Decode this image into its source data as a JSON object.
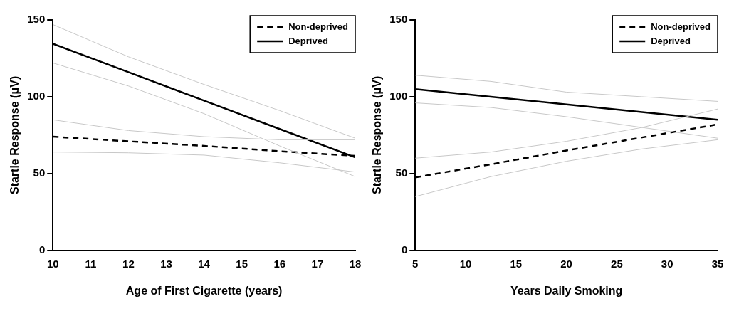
{
  "chart_data": [
    {
      "type": "line",
      "xlabel": "Age of First Cigarette (years)",
      "ylabel": "Startle Response (μV)",
      "x": [
        10,
        12,
        14,
        16,
        18
      ],
      "xlim": [
        10,
        18
      ],
      "xticks": [
        10,
        11,
        12,
        13,
        14,
        15,
        16,
        17,
        18
      ],
      "ylim": [
        0,
        150
      ],
      "yticks": [
        0,
        50,
        100,
        150
      ],
      "legend": "top right",
      "series": [
        {
          "color": "#c8c8c8",
          "values": [
            64,
            63.5,
            62,
            57,
            51
          ]
        },
        {
          "color": "#c8c8c8",
          "values": [
            85,
            78,
            74,
            72,
            72
          ]
        },
        {
          "color": "#c8c8c8",
          "values": [
            122,
            107,
            89,
            68,
            48
          ]
        },
        {
          "color": "#c8c8c8",
          "values": [
            147,
            126,
            108,
            91,
            73
          ]
        },
        {
          "name": "Non-deprived",
          "color": "#000000",
          "line_style": "dashed",
          "values": [
            74,
            71,
            68,
            64.5,
            61.5
          ]
        },
        {
          "name": "Deprived",
          "color": "#000000",
          "line_style": "solid",
          "values": [
            134.5,
            116,
            97.5,
            79,
            60.5
          ]
        }
      ]
    },
    {
      "type": "line",
      "xlabel": "Years Daily Smoking",
      "ylabel": "Startle Response (μV)",
      "x": [
        5,
        12.5,
        20,
        27.5,
        35
      ],
      "xlim": [
        5,
        35
      ],
      "xticks": [
        5,
        10,
        15,
        20,
        25,
        30,
        35
      ],
      "ylim": [
        0,
        150
      ],
      "yticks": [
        0,
        50,
        100,
        150
      ],
      "legend": "top right",
      "series": [
        {
          "color": "#c8c8c8",
          "values": [
            35,
            48,
            58,
            66,
            72
          ]
        },
        {
          "color": "#c8c8c8",
          "values": [
            60,
            64,
            71,
            80,
            92
          ]
        },
        {
          "color": "#c8c8c8",
          "values": [
            96,
            93,
            87,
            80,
            73
          ]
        },
        {
          "color": "#c8c8c8",
          "values": [
            114,
            110,
            103,
            100,
            97
          ]
        },
        {
          "name": "Non-deprived",
          "color": "#000000",
          "line_style": "dashed",
          "values": [
            47.5,
            56,
            65,
            73.5,
            82
          ]
        },
        {
          "name": "Deprived",
          "color": "#000000",
          "line_style": "solid",
          "values": [
            105,
            100,
            95,
            90,
            85
          ]
        }
      ]
    }
  ]
}
